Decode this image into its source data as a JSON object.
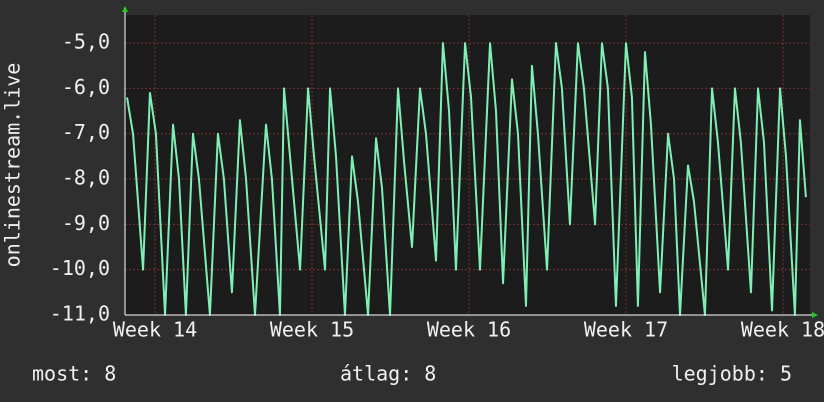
{
  "chart_data": {
    "type": "line",
    "y_label": "onlinestream.live",
    "x": [
      13.822,
      13.86,
      13.924,
      13.968,
      14.006,
      14.064,
      14.115,
      14.153,
      14.197,
      14.242,
      14.28,
      14.35,
      14.401,
      14.439,
      14.49,
      14.541,
      14.58,
      14.637,
      14.707,
      14.745,
      14.796,
      14.822,
      14.86,
      14.924,
      14.975,
      15.013,
      15.083,
      15.115,
      15.153,
      15.21,
      15.255,
      15.293,
      15.357,
      15.408,
      15.446,
      15.497,
      15.548,
      15.586,
      15.637,
      15.688,
      15.726,
      15.79,
      15.834,
      15.873,
      15.917,
      15.975,
      16.013,
      16.07,
      16.134,
      16.172,
      16.217,
      16.274,
      16.312,
      16.363,
      16.401,
      16.439,
      16.497,
      16.554,
      16.592,
      16.643,
      16.694,
      16.732,
      16.803,
      16.847,
      16.885,
      16.936,
      17.0,
      17.038,
      17.076,
      17.121,
      17.159,
      17.217,
      17.268,
      17.306,
      17.344,
      17.395,
      17.433,
      17.503,
      17.548,
      17.586,
      17.65,
      17.694,
      17.732,
      17.796,
      17.841,
      17.879,
      17.93,
      17.981,
      18.019,
      18.076,
      18.108,
      18.146
    ],
    "series": [
      {
        "color": "#7ff0b4",
        "values": [
          -6.2,
          -7.0,
          -10,
          -6.1,
          -7.0,
          -11,
          -6.8,
          -8.0,
          -11,
          -7.0,
          -8.0,
          -11,
          -7.0,
          -8.0,
          -10.5,
          -6.7,
          -8.0,
          -11,
          -6.8,
          -8.0,
          -11,
          -6.0,
          -7.5,
          -10,
          -6.0,
          -7.5,
          -10,
          -6.0,
          -7.5,
          -11,
          -7.5,
          -8.5,
          -11,
          -7.1,
          -8.2,
          -11,
          -6.0,
          -7.6,
          -9.5,
          -6.0,
          -7.0,
          -9.8,
          -5.0,
          -6.5,
          -10,
          -5.0,
          -6.2,
          -10,
          -5.0,
          -6.5,
          -10.3,
          -5.8,
          -7.0,
          -10.8,
          -5.5,
          -7.0,
          -10,
          -5.0,
          -6.0,
          -9.0,
          -5.0,
          -6.0,
          -9.0,
          -5.0,
          -6.0,
          -10.8,
          -5.0,
          -6.2,
          -10.8,
          -5.2,
          -6.8,
          -10.5,
          -7.0,
          -8.0,
          -11,
          -7.7,
          -8.5,
          -11,
          -6.0,
          -7.2,
          -10,
          -6.0,
          -7.2,
          -10.5,
          -6.0,
          -7.2,
          -10.9,
          -6.0,
          -7.5,
          -11,
          -6.7,
          -8.4
        ]
      }
    ],
    "xlim": [
      13.809,
      18.172
    ],
    "xticks": [
      {
        "value": 14,
        "label": "Week 14"
      },
      {
        "value": 15,
        "label": "Week 15"
      },
      {
        "value": 16,
        "label": "Week 16"
      },
      {
        "value": 17,
        "label": "Week 17"
      },
      {
        "value": 18,
        "label": "Week 18"
      }
    ],
    "ylim": [
      -11,
      -4.38
    ],
    "yticks": [
      {
        "value": -11,
        "label": "-11,0"
      },
      {
        "value": -10,
        "label": "-10,0"
      },
      {
        "value": -9,
        "label": "-9,0"
      },
      {
        "value": -8,
        "label": "-8,0"
      },
      {
        "value": -7,
        "label": "-7,0"
      },
      {
        "value": -6,
        "label": "-6,0"
      },
      {
        "value": -5,
        "label": "-5,0"
      }
    ],
    "grid": true,
    "footer": [
      "most: 8",
      "átlag: 8",
      "legjobb: 5"
    ]
  }
}
